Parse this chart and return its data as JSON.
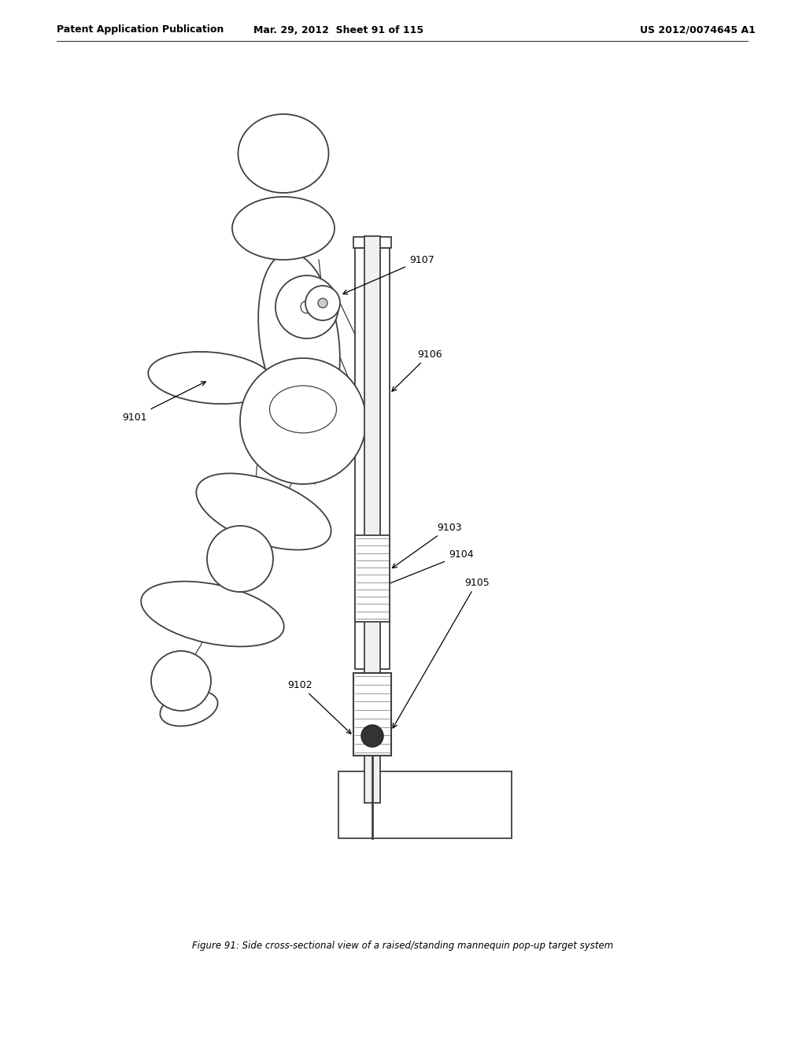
{
  "header_left": "Patent Application Publication",
  "header_mid": "Mar. 29, 2012  Sheet 91 of 115",
  "header_right": "US 2012/0074645 A1",
  "caption": "Figure 91: Side cross-sectional view of a raised/standing mannequin pop-up target system",
  "bg_color": "#ffffff",
  "line_color": "#404040",
  "dark_color": "#222222",
  "gray_color": "#aaaaaa"
}
